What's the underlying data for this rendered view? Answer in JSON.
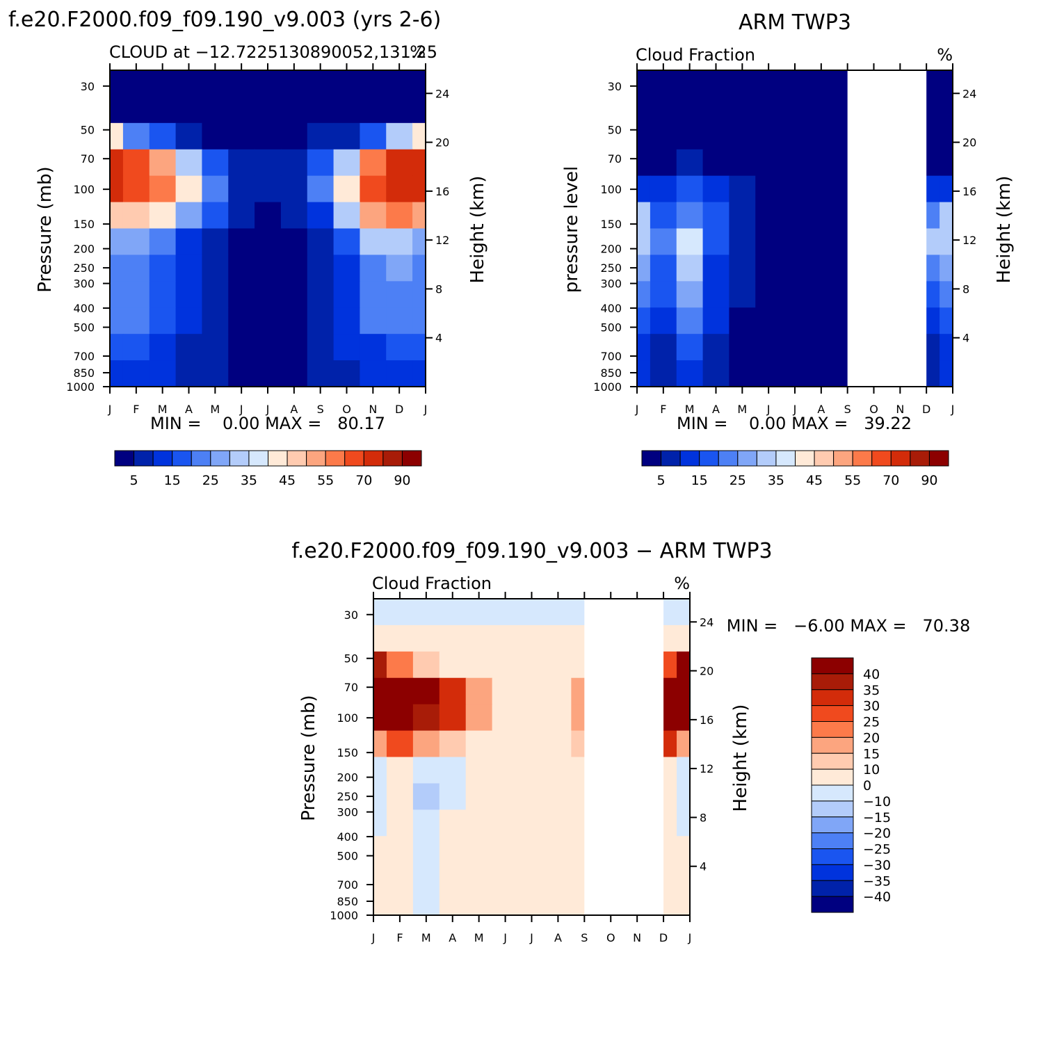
{
  "colors": {
    "seq": [
      "#000080",
      "#0022aa",
      "#0033dd",
      "#1a55f0",
      "#4d80f5",
      "#80a6f7",
      "#b3ccfa",
      "#d6e8fd",
      "#ffead8",
      "#ffcbb0",
      "#fca57f",
      "#fc7a4a",
      "#f04a1e",
      "#d32c0a",
      "#a81c08",
      "#8c0000"
    ],
    "diff": [
      "#000080",
      "#0022aa",
      "#0033dd",
      "#1a55f0",
      "#4d80f5",
      "#80a6f7",
      "#b3ccfa",
      "#d6e8fd",
      "#ffead8",
      "#ffcbb0",
      "#fca57f",
      "#fc7a4a",
      "#f04a1e",
      "#d32c0a",
      "#a81c08",
      "#8c0000"
    ]
  },
  "chart_data": [
    {
      "type": "heatmap",
      "title": "f.e20.F2000.f09_f09.190_v9.003 (yrs 2-6)",
      "subtitle_left": "CLOUD at −12.7225130890052,131.25",
      "subtitle_right": "%",
      "ylabel": "Pressure (mb)",
      "ylabel_right": "Height (km)",
      "x_ticks": [
        "J",
        "F",
        "M",
        "A",
        "M",
        "J",
        "J",
        "A",
        "S",
        "O",
        "N",
        "D",
        "J"
      ],
      "y_ticks": [
        "30",
        "50",
        "70",
        "100",
        "150",
        "200",
        "250",
        "300",
        "400",
        "500",
        "700",
        "850",
        "1000"
      ],
      "y_ticks_right": [
        "24",
        "20",
        "16",
        "12",
        "8",
        "4"
      ],
      "stats": "MIN =    0.00 MAX =   80.17",
      "min": 0.0,
      "max": 80.17,
      "colorbar_labels": [
        "5",
        "15",
        "25",
        "35",
        "45",
        "55",
        "70",
        "90"
      ],
      "missing_months": [],
      "z": [
        [
          1,
          1,
          1,
          1,
          1,
          1,
          1,
          1,
          1,
          1,
          1,
          1,
          1
        ],
        [
          2,
          1,
          1,
          1,
          1,
          1,
          1,
          1,
          1,
          1,
          1,
          1,
          2
        ],
        [
          40,
          24,
          15,
          7,
          4,
          3,
          3,
          3,
          5,
          9,
          18,
          30,
          42
        ],
        [
          72,
          65,
          52,
          34,
          18,
          8,
          5,
          8,
          17,
          34,
          55,
          70,
          72
        ],
        [
          70,
          68,
          55,
          42,
          22,
          9,
          6,
          9,
          20,
          44,
          64,
          70,
          70
        ],
        [
          48,
          46,
          40,
          28,
          15,
          7,
          1,
          7,
          14,
          32,
          50,
          56,
          50
        ],
        [
          28,
          26,
          20,
          14,
          9,
          1,
          1,
          1,
          8,
          18,
          30,
          34,
          28
        ],
        [
          22,
          24,
          18,
          12,
          7,
          1,
          1,
          1,
          6,
          12,
          22,
          26,
          22
        ],
        [
          20,
          24,
          18,
          14,
          8,
          1,
          1,
          1,
          6,
          12,
          20,
          22,
          20
        ],
        [
          22,
          20,
          16,
          12,
          8,
          3,
          2,
          3,
          6,
          12,
          20,
          22,
          22
        ],
        [
          16,
          16,
          12,
          9,
          6,
          4,
          3,
          4,
          6,
          10,
          14,
          16,
          16
        ],
        [
          14,
          14,
          10,
          8,
          5,
          4,
          4,
          4,
          5,
          8,
          12,
          14,
          14
        ]
      ]
    },
    {
      "type": "heatmap",
      "title": "ARM TWP3",
      "subtitle_left": "Cloud Fraction",
      "subtitle_right": "%",
      "ylabel": "pressure level",
      "ylabel_right": "Height (km)",
      "x_ticks": [
        "J",
        "F",
        "M",
        "A",
        "M",
        "J",
        "J",
        "A",
        "S",
        "O",
        "N",
        "D",
        "J"
      ],
      "y_ticks": [
        "30",
        "50",
        "70",
        "100",
        "150",
        "200",
        "250",
        "300",
        "400",
        "500",
        "700",
        "850",
        "1000"
      ],
      "y_ticks_right": [
        "24",
        "20",
        "16",
        "12",
        "8",
        "4"
      ],
      "stats": "MIN =    0.00 MAX =   39.22",
      "min": 0.0,
      "max": 39.22,
      "colorbar_labels": [
        "5",
        "15",
        "25",
        "35",
        "45",
        "55",
        "70",
        "90"
      ],
      "missing_months": [
        8,
        9
      ],
      "z": [
        [
          1,
          1,
          1,
          1,
          1,
          1,
          1,
          1,
          1,
          1,
          1,
          1,
          1
        ],
        [
          1,
          1,
          1,
          1,
          1,
          1,
          1,
          1,
          1,
          1,
          1,
          1,
          1
        ],
        [
          1,
          1,
          1,
          1,
          1,
          1,
          1,
          1,
          1,
          1,
          1,
          1,
          1
        ],
        [
          1,
          2,
          5,
          2,
          1,
          1,
          1,
          1,
          1,
          1,
          1,
          1,
          1
        ],
        [
          14,
          10,
          16,
          10,
          5,
          1,
          1,
          1,
          1,
          1,
          8,
          10,
          14
        ],
        [
          30,
          18,
          24,
          16,
          8,
          1,
          1,
          1,
          1,
          1,
          16,
          24,
          30
        ],
        [
          34,
          20,
          38,
          18,
          8,
          1,
          1,
          1,
          1,
          1,
          20,
          30,
          34
        ],
        [
          28,
          18,
          30,
          14,
          6,
          1,
          1,
          1,
          1,
          1,
          16,
          24,
          28
        ],
        [
          24,
          16,
          26,
          12,
          5,
          1,
          1,
          1,
          1,
          1,
          12,
          18,
          24
        ],
        [
          18,
          14,
          22,
          10,
          4,
          1,
          1,
          1,
          1,
          1,
          10,
          14,
          18
        ],
        [
          12,
          9,
          16,
          6,
          4,
          2,
          1,
          1,
          1,
          1,
          5,
          8,
          12
        ],
        [
          10,
          8,
          12,
          6,
          4,
          3,
          1,
          1,
          1,
          1,
          6,
          8,
          10
        ]
      ]
    },
    {
      "type": "heatmap",
      "title": "f.e20.F2000.f09_f09.190_v9.003 − ARM TWP3",
      "subtitle_left": "Cloud Fraction",
      "subtitle_right": "%",
      "ylabel": "Pressure (mb)",
      "ylabel_right": "Height (km)",
      "x_ticks": [
        "J",
        "F",
        "M",
        "A",
        "M",
        "J",
        "J",
        "A",
        "S",
        "O",
        "N",
        "D",
        "J"
      ],
      "y_ticks": [
        "30",
        "50",
        "70",
        "100",
        "150",
        "200",
        "250",
        "300",
        "400",
        "500",
        "700",
        "850",
        "1000"
      ],
      "y_ticks_right": [
        "24",
        "20",
        "16",
        "12",
        "8",
        "4"
      ],
      "stats": "MIN =   −6.00 MAX =   70.38",
      "min": -6.0,
      "max": 70.38,
      "colorbar_labels": [
        "40",
        "35",
        "30",
        "25",
        "20",
        "15",
        "10",
        "0",
        "−10",
        "−15",
        "−20",
        "−25",
        "−30",
        "−35",
        "−40"
      ],
      "missing_months": [
        8,
        9
      ],
      "z": [
        [
          -1,
          -1,
          -1,
          -1,
          -1,
          -1,
          -1,
          -1,
          -1,
          -1,
          -1,
          -1,
          -1
        ],
        [
          1,
          1,
          1,
          1,
          1,
          1,
          1,
          1,
          1,
          1,
          1,
          1,
          1
        ],
        [
          38,
          22,
          13,
          5,
          3,
          2,
          2,
          2,
          4,
          8,
          16,
          28,
          40
        ],
        [
          70,
          62,
          46,
          32,
          17,
          7,
          4,
          7,
          16,
          33,
          54,
          68,
          70
        ],
        [
          56,
          58,
          39,
          32,
          17,
          8,
          5,
          8,
          19,
          43,
          56,
          60,
          56
        ],
        [
          18,
          28,
          16,
          12,
          7,
          6,
          1,
          6,
          13,
          31,
          34,
          32,
          18
        ],
        [
          -6,
          6,
          -10,
          -4,
          1,
          0,
          0,
          0,
          7,
          17,
          10,
          4,
          -6
        ],
        [
          -6,
          6,
          -12,
          -2,
          1,
          0,
          0,
          0,
          5,
          11,
          6,
          2,
          -6
        ],
        [
          -4,
          8,
          -8,
          2,
          3,
          0,
          0,
          0,
          5,
          11,
          8,
          4,
          -4
        ],
        [
          4,
          6,
          -6,
          2,
          4,
          2,
          1,
          2,
          5,
          11,
          10,
          8,
          4
        ],
        [
          4,
          7,
          -4,
          3,
          2,
          2,
          2,
          3,
          5,
          9,
          9,
          8,
          4
        ],
        [
          4,
          6,
          -2,
          2,
          1,
          1,
          3,
          3,
          4,
          7,
          6,
          6,
          4
        ]
      ]
    }
  ]
}
